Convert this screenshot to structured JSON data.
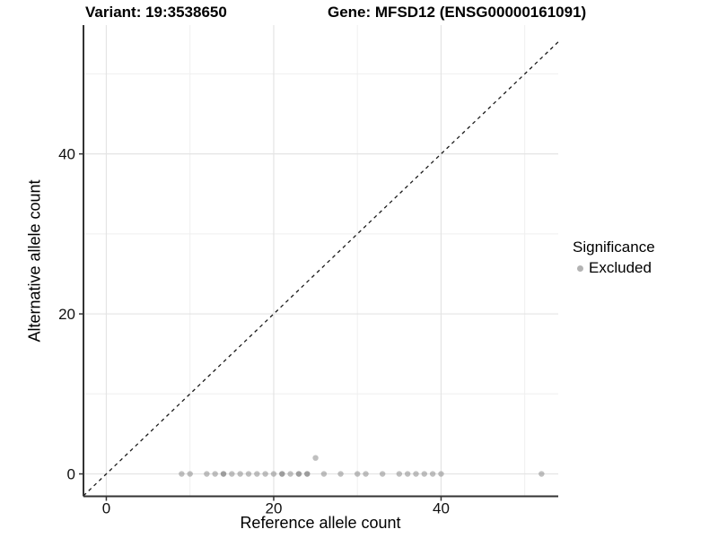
{
  "chart_data": {
    "type": "scatter",
    "title_left": "Variant: 19:3538650",
    "title_right": "Gene: MFSD12 (ENSG00000161091)",
    "xlabel": "Reference allele count",
    "ylabel": "Alternative allele count",
    "xlim": [
      -2.73,
      54.0
    ],
    "ylim": [
      -2.8,
      56.1
    ],
    "x_ticks": [
      0,
      20,
      40
    ],
    "y_ticks": [
      0,
      20,
      40
    ],
    "grid_major": [
      0,
      20,
      40
    ],
    "grid_minor": [
      10,
      30,
      50
    ],
    "grid_on": true,
    "identity_line": {
      "style": "dashed",
      "x1": -2.73,
      "y1": -2.73,
      "x2": 54.0,
      "y2": 54.0,
      "color": "#1a1a1a"
    },
    "legend": {
      "position": "right",
      "title": "Significance",
      "items": [
        {
          "label": "Excluded",
          "color": "#b3b3b3"
        }
      ]
    },
    "series": [
      {
        "name": "Excluded",
        "point_color": "#808080",
        "point_opacity": 0.5,
        "points": [
          {
            "x": 9,
            "y": 0,
            "n": 1
          },
          {
            "x": 10,
            "y": 0,
            "n": 1
          },
          {
            "x": 12,
            "y": 0,
            "n": 1
          },
          {
            "x": 13,
            "y": 0,
            "n": 1
          },
          {
            "x": 14,
            "y": 0,
            "n": 2
          },
          {
            "x": 15,
            "y": 0,
            "n": 1
          },
          {
            "x": 16,
            "y": 0,
            "n": 1
          },
          {
            "x": 17,
            "y": 0,
            "n": 1
          },
          {
            "x": 18,
            "y": 0,
            "n": 1
          },
          {
            "x": 19,
            "y": 0,
            "n": 1
          },
          {
            "x": 20,
            "y": 0,
            "n": 1
          },
          {
            "x": 21,
            "y": 0,
            "n": 2
          },
          {
            "x": 22,
            "y": 0,
            "n": 1
          },
          {
            "x": 23,
            "y": 0,
            "n": 2
          },
          {
            "x": 24,
            "y": 0,
            "n": 2
          },
          {
            "x": 25,
            "y": 2,
            "n": 1
          },
          {
            "x": 26,
            "y": 0,
            "n": 1
          },
          {
            "x": 28,
            "y": 0,
            "n": 1
          },
          {
            "x": 30,
            "y": 0,
            "n": 1
          },
          {
            "x": 31,
            "y": 0,
            "n": 1
          },
          {
            "x": 33,
            "y": 0,
            "n": 1
          },
          {
            "x": 35,
            "y": 0,
            "n": 1
          },
          {
            "x": 36,
            "y": 0,
            "n": 1
          },
          {
            "x": 37,
            "y": 0,
            "n": 1
          },
          {
            "x": 38,
            "y": 0,
            "n": 1
          },
          {
            "x": 39,
            "y": 0,
            "n": 1
          },
          {
            "x": 40,
            "y": 0,
            "n": 1
          },
          {
            "x": 52,
            "y": 0,
            "n": 1
          }
        ]
      }
    ],
    "colors": {
      "axis_line": "#333333",
      "tick": "#333333",
      "tick_label": "#111111",
      "grid_major_color": "#e4e4e4",
      "grid_minor_color": "#efefef",
      "background": "#ffffff"
    }
  }
}
